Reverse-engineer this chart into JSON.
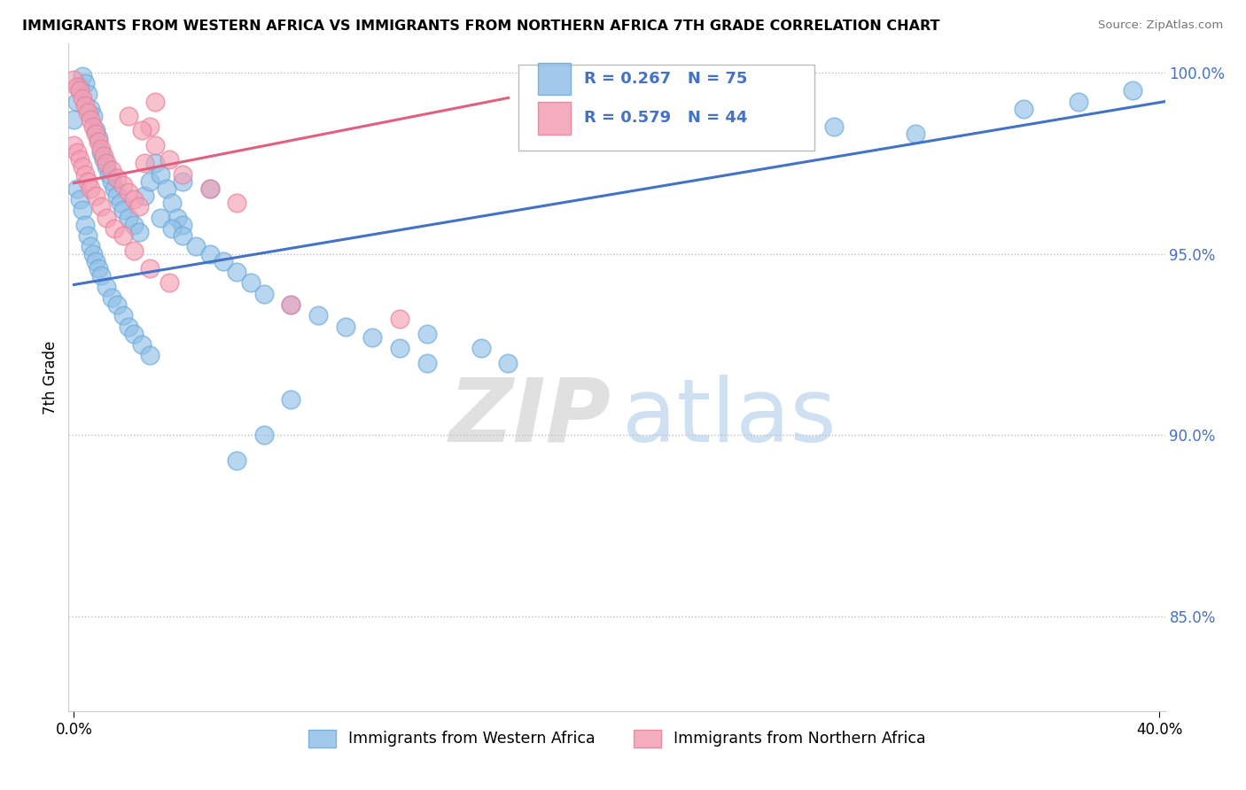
{
  "title": "IMMIGRANTS FROM WESTERN AFRICA VS IMMIGRANTS FROM NORTHERN AFRICA 7TH GRADE CORRELATION CHART",
  "source": "Source: ZipAtlas.com",
  "ylabel": "7th Grade",
  "ymin": 0.824,
  "ymax": 1.008,
  "xmin": -0.002,
  "xmax": 0.402,
  "ytick_vals": [
    0.85,
    0.9,
    0.95,
    1.0
  ],
  "ytick_labels": [
    "85.0%",
    "90.0%",
    "95.0%",
    "100.0%"
  ],
  "xtick_vals": [
    0.0,
    0.4
  ],
  "xtick_labels": [
    "0.0%",
    "40.0%"
  ],
  "blue_R": 0.267,
  "blue_N": 75,
  "pink_R": 0.579,
  "pink_N": 44,
  "blue_label": "Immigrants from Western Africa",
  "pink_label": "Immigrants from Northern Africa",
  "blue_color": "#92C0E8",
  "pink_color": "#F4A0B5",
  "blue_edge_color": "#6AAAD8",
  "pink_edge_color": "#E8809A",
  "blue_line_color": "#4472C4",
  "pink_line_color": "#E06080",
  "tick_color": "#4472C4",
  "watermark_zip_color": "#C8C8C8",
  "watermark_atlas_color": "#A8C8E8",
  "blue_line_x0": 0.0,
  "blue_line_y0": 0.9415,
  "blue_line_x1": 0.402,
  "blue_line_y1": 0.992,
  "pink_line_x0": 0.0,
  "pink_line_y0": 0.9695,
  "pink_line_x1": 0.16,
  "pink_line_y1": 0.993
}
